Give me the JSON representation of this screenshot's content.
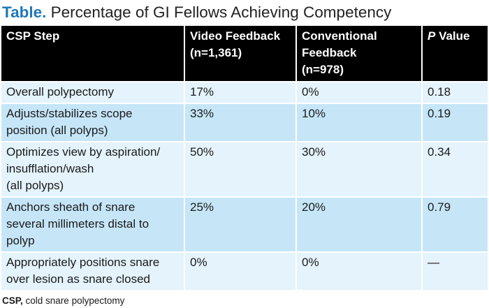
{
  "title": {
    "prefix": "Table.",
    "text": " Percentage of GI Fellows Achieving Competency"
  },
  "table": {
    "headers": {
      "col1": "CSP Step",
      "col2_line1": "Video Feedback",
      "col2_line2": "(n=1,361)",
      "col3_line1": "Conventional",
      "col3_line2": "Feedback",
      "col3_line3": "(n=978)",
      "col4_italic": "P",
      "col4_rest": " Value"
    },
    "rows": [
      {
        "step_lines": [
          "Overall polypectomy"
        ],
        "video": "17%",
        "conventional": "0%",
        "p": "0.18"
      },
      {
        "step_lines": [
          "Adjusts/stabilizes scope",
          "position (all polyps)"
        ],
        "video": "33%",
        "conventional": "10%",
        "p": "0.19"
      },
      {
        "step_lines": [
          "Optimizes view by aspiration/",
          "insufflation/wash",
          "(all polyps)"
        ],
        "video": "50%",
        "conventional": "30%",
        "p": "0.34"
      },
      {
        "step_lines": [
          "Anchors sheath of snare",
          "several millimeters distal to",
          "polyp"
        ],
        "video": "25%",
        "conventional": "20%",
        "p": "0.79"
      },
      {
        "step_lines": [
          "Appropriately positions snare",
          "over lesion as snare closed"
        ],
        "video": "0%",
        "conventional": "0%",
        "p": "—"
      }
    ]
  },
  "footnote": {
    "abbr": "CSP,",
    "text": " cold snare polypectomy"
  },
  "colors": {
    "title_accent": "#1f78b8",
    "header_bg": "#000000",
    "row_light": "#e4f3fc",
    "row_dark": "#c6e6f8"
  }
}
